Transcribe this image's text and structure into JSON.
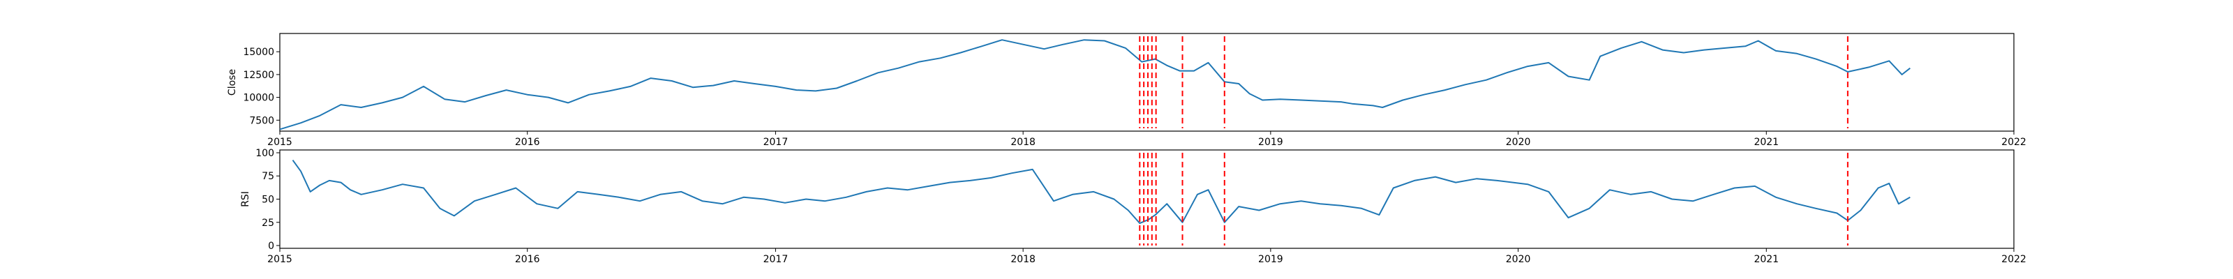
{
  "chart_data": [
    {
      "type": "line",
      "ylabel": "Close",
      "ylim": [
        6300,
        17000
      ],
      "xlim": [
        "2015-01-01",
        "2022-01-01"
      ],
      "x_ticks": [
        "2015",
        "2016",
        "2017",
        "2018",
        "2019",
        "2020",
        "2021",
        "2022"
      ],
      "y_ticks": [
        7500,
        10000,
        12500,
        15000
      ],
      "y_tick_labels": [
        "7500",
        "10000",
        "12500",
        "15000"
      ],
      "line_color": "#1f77b4",
      "vline_color": "#ff0000",
      "grid": false,
      "series": [
        {
          "values": [
            [
              "2015-01-01",
              6500
            ],
            [
              "2015-02-01",
              7200
            ],
            [
              "2015-03-01",
              8000
            ],
            [
              "2015-04-01",
              9200
            ],
            [
              "2015-05-01",
              8900
            ],
            [
              "2015-06-01",
              9400
            ],
            [
              "2015-07-01",
              10000
            ],
            [
              "2015-08-01",
              11200
            ],
            [
              "2015-09-01",
              9800
            ],
            [
              "2015-10-01",
              9500
            ],
            [
              "2015-11-01",
              10200
            ],
            [
              "2015-12-01",
              10800
            ],
            [
              "2016-01-01",
              10300
            ],
            [
              "2016-02-01",
              10000
            ],
            [
              "2016-03-01",
              9400
            ],
            [
              "2016-04-01",
              10300
            ],
            [
              "2016-05-01",
              10700
            ],
            [
              "2016-06-01",
              11200
            ],
            [
              "2016-07-01",
              12100
            ],
            [
              "2016-08-01",
              11800
            ],
            [
              "2016-09-01",
              11100
            ],
            [
              "2016-10-01",
              11300
            ],
            [
              "2016-11-01",
              11800
            ],
            [
              "2016-12-01",
              11500
            ],
            [
              "2017-01-01",
              11200
            ],
            [
              "2017-02-01",
              10800
            ],
            [
              "2017-03-01",
              10700
            ],
            [
              "2017-04-01",
              11000
            ],
            [
              "2017-05-01",
              11800
            ],
            [
              "2017-06-01",
              12700
            ],
            [
              "2017-07-01",
              13200
            ],
            [
              "2017-08-01",
              13900
            ],
            [
              "2017-09-01",
              14300
            ],
            [
              "2017-10-01",
              14900
            ],
            [
              "2017-11-01",
              15600
            ],
            [
              "2017-12-01",
              16300
            ],
            [
              "2018-01-01",
              15800
            ],
            [
              "2018-02-01",
              15300
            ],
            [
              "2018-03-01",
              15800
            ],
            [
              "2018-04-01",
              16300
            ],
            [
              "2018-05-01",
              16200
            ],
            [
              "2018-06-01",
              15400
            ],
            [
              "2018-06-25",
              13900
            ],
            [
              "2018-07-15",
              14200
            ],
            [
              "2018-08-01",
              13500
            ],
            [
              "2018-08-20",
              12900
            ],
            [
              "2018-09-10",
              12900
            ],
            [
              "2018-10-01",
              13800
            ],
            [
              "2018-10-25",
              11700
            ],
            [
              "2018-11-15",
              11500
            ],
            [
              "2018-12-01",
              10400
            ],
            [
              "2018-12-20",
              9700
            ],
            [
              "2019-01-15",
              9800
            ],
            [
              "2019-02-15",
              9700
            ],
            [
              "2019-03-15",
              9600
            ],
            [
              "2019-04-15",
              9500
            ],
            [
              "2019-05-01",
              9300
            ],
            [
              "2019-06-01",
              9100
            ],
            [
              "2019-06-15",
              8900
            ],
            [
              "2019-07-15",
              9700
            ],
            [
              "2019-08-15",
              10300
            ],
            [
              "2019-09-15",
              10800
            ],
            [
              "2019-10-15",
              11400
            ],
            [
              "2019-11-15",
              11900
            ],
            [
              "2019-12-15",
              12700
            ],
            [
              "2020-01-15",
              13400
            ],
            [
              "2020-02-15",
              13800
            ],
            [
              "2020-03-15",
              12300
            ],
            [
              "2020-04-15",
              11900
            ],
            [
              "2020-05-01",
              14500
            ],
            [
              "2020-06-01",
              15400
            ],
            [
              "2020-07-01",
              16100
            ],
            [
              "2020-08-01",
              15200
            ],
            [
              "2020-09-01",
              14900
            ],
            [
              "2020-10-01",
              15200
            ],
            [
              "2020-11-01",
              15400
            ],
            [
              "2020-12-01",
              15600
            ],
            [
              "2020-12-20",
              16200
            ],
            [
              "2021-01-15",
              15100
            ],
            [
              "2021-02-15",
              14800
            ],
            [
              "2021-03-15",
              14200
            ],
            [
              "2021-04-15",
              13400
            ],
            [
              "2021-05-01",
              12800
            ],
            [
              "2021-06-01",
              13300
            ],
            [
              "2021-07-01",
              14000
            ],
            [
              "2021-07-20",
              12500
            ],
            [
              "2021-08-01",
              13200
            ]
          ]
        }
      ],
      "vlines": [
        "2018-06-22",
        "2018-06-28",
        "2018-07-04",
        "2018-07-10",
        "2018-07-16",
        "2018-08-24",
        "2018-10-25",
        "2021-05-01"
      ]
    },
    {
      "type": "line",
      "ylabel": "RSI",
      "ylim": [
        -3,
        103
      ],
      "xlim": [
        "2015-01-01",
        "2022-01-01"
      ],
      "x_ticks": [
        "2015",
        "2016",
        "2017",
        "2018",
        "2019",
        "2020",
        "2021",
        "2022"
      ],
      "y_ticks": [
        0,
        25,
        50,
        75,
        100
      ],
      "y_tick_labels": [
        "0",
        "25",
        "50",
        "75",
        "100"
      ],
      "line_color": "#1f77b4",
      "vline_color": "#ff0000",
      "grid": false,
      "series": [
        {
          "values": [
            [
              "2015-01-20",
              92
            ],
            [
              "2015-02-01",
              80
            ],
            [
              "2015-02-15",
              58
            ],
            [
              "2015-03-01",
              65
            ],
            [
              "2015-03-15",
              70
            ],
            [
              "2015-04-01",
              68
            ],
            [
              "2015-04-15",
              60
            ],
            [
              "2015-05-01",
              55
            ],
            [
              "2015-06-01",
              60
            ],
            [
              "2015-07-01",
              66
            ],
            [
              "2015-08-01",
              62
            ],
            [
              "2015-08-25",
              40
            ],
            [
              "2015-09-15",
              32
            ],
            [
              "2015-10-15",
              48
            ],
            [
              "2015-11-15",
              55
            ],
            [
              "2015-12-15",
              62
            ],
            [
              "2016-01-15",
              45
            ],
            [
              "2016-02-15",
              40
            ],
            [
              "2016-03-15",
              58
            ],
            [
              "2016-04-15",
              55
            ],
            [
              "2016-05-15",
              52
            ],
            [
              "2016-06-15",
              48
            ],
            [
              "2016-07-15",
              55
            ],
            [
              "2016-08-15",
              58
            ],
            [
              "2016-09-15",
              48
            ],
            [
              "2016-10-15",
              45
            ],
            [
              "2016-11-15",
              52
            ],
            [
              "2016-12-15",
              50
            ],
            [
              "2017-01-15",
              46
            ],
            [
              "2017-02-15",
              50
            ],
            [
              "2017-03-15",
              48
            ],
            [
              "2017-04-15",
              52
            ],
            [
              "2017-05-15",
              58
            ],
            [
              "2017-06-15",
              62
            ],
            [
              "2017-07-15",
              60
            ],
            [
              "2017-08-15",
              64
            ],
            [
              "2017-09-15",
              68
            ],
            [
              "2017-10-15",
              70
            ],
            [
              "2017-11-15",
              73
            ],
            [
              "2017-12-15",
              78
            ],
            [
              "2018-01-15",
              82
            ],
            [
              "2018-02-15",
              48
            ],
            [
              "2018-03-15",
              55
            ],
            [
              "2018-04-15",
              58
            ],
            [
              "2018-05-15",
              50
            ],
            [
              "2018-06-05",
              38
            ],
            [
              "2018-06-22",
              24
            ],
            [
              "2018-07-05",
              28
            ],
            [
              "2018-07-15",
              33
            ],
            [
              "2018-08-01",
              45
            ],
            [
              "2018-08-24",
              25
            ],
            [
              "2018-09-15",
              55
            ],
            [
              "2018-10-01",
              60
            ],
            [
              "2018-10-25",
              25
            ],
            [
              "2018-11-15",
              42
            ],
            [
              "2018-12-15",
              38
            ],
            [
              "2019-01-15",
              45
            ],
            [
              "2019-02-15",
              48
            ],
            [
              "2019-03-15",
              45
            ],
            [
              "2019-04-15",
              43
            ],
            [
              "2019-05-15",
              40
            ],
            [
              "2019-06-10",
              33
            ],
            [
              "2019-07-01",
              62
            ],
            [
              "2019-08-01",
              70
            ],
            [
              "2019-09-01",
              74
            ],
            [
              "2019-10-01",
              68
            ],
            [
              "2019-11-01",
              72
            ],
            [
              "2019-12-01",
              70
            ],
            [
              "2020-01-15",
              66
            ],
            [
              "2020-02-15",
              58
            ],
            [
              "2020-03-15",
              30
            ],
            [
              "2020-04-15",
              40
            ],
            [
              "2020-05-15",
              60
            ],
            [
              "2020-06-15",
              55
            ],
            [
              "2020-07-15",
              58
            ],
            [
              "2020-08-15",
              50
            ],
            [
              "2020-09-15",
              48
            ],
            [
              "2020-10-15",
              55
            ],
            [
              "2020-11-15",
              62
            ],
            [
              "2020-12-15",
              64
            ],
            [
              "2021-01-15",
              52
            ],
            [
              "2021-02-15",
              45
            ],
            [
              "2021-03-15",
              40
            ],
            [
              "2021-04-15",
              35
            ],
            [
              "2021-05-01",
              27
            ],
            [
              "2021-05-20",
              38
            ],
            [
              "2021-06-15",
              62
            ],
            [
              "2021-07-01",
              67
            ],
            [
              "2021-07-15",
              45
            ],
            [
              "2021-08-01",
              52
            ]
          ]
        }
      ],
      "vlines": [
        "2018-06-22",
        "2018-06-28",
        "2018-07-04",
        "2018-07-10",
        "2018-07-16",
        "2018-08-24",
        "2018-10-25",
        "2021-05-01"
      ]
    }
  ]
}
